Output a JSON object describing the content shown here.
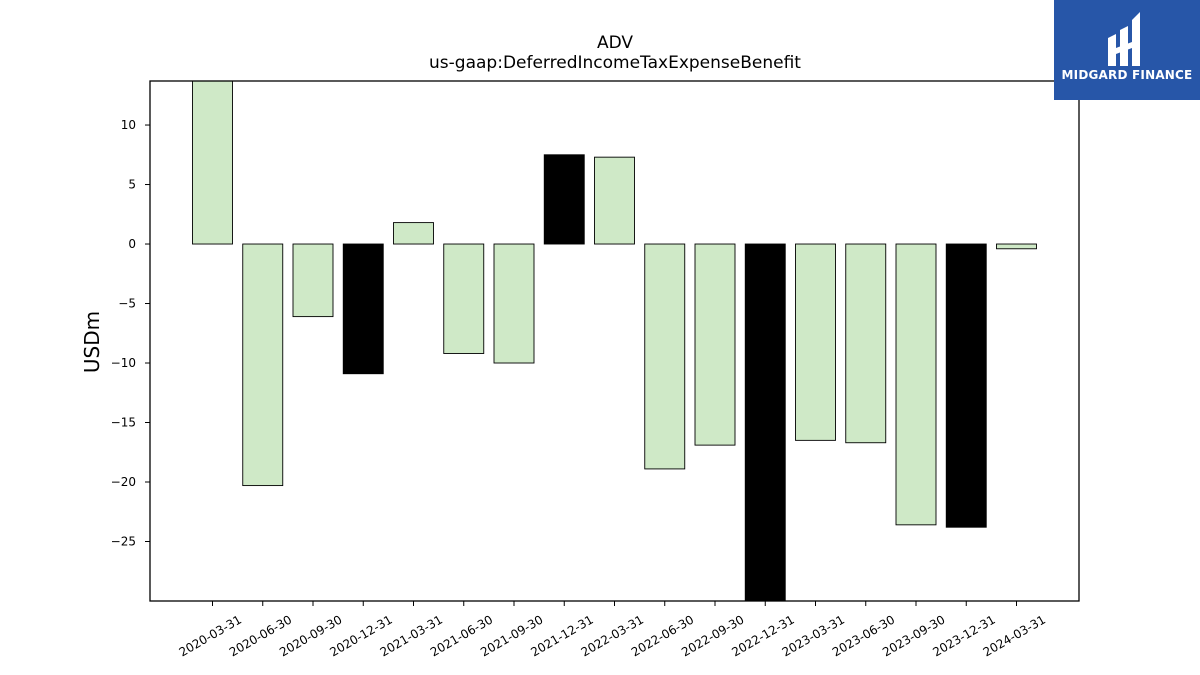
{
  "chart_data": {
    "type": "bar",
    "title": "ADV",
    "subtitle": "us-gaap:DeferredIncomeTaxExpenseBenefit",
    "ylabel": "USDm",
    "xlabel": "",
    "ylim": [
      -30,
      13.7
    ],
    "yticks": [
      10,
      5,
      0,
      -5,
      -10,
      -15,
      -20,
      -25
    ],
    "ytick_labels": [
      "10",
      "5",
      "0",
      "−5",
      "−10",
      "−15",
      "−20",
      "−25"
    ],
    "grid": false,
    "categories": [
      "2020-03-31",
      "2020-06-30",
      "2020-09-30",
      "2020-12-31",
      "2021-03-31",
      "2021-06-30",
      "2021-09-30",
      "2021-12-31",
      "2022-03-31",
      "2022-06-30",
      "2022-09-30",
      "2022-12-31",
      "2023-03-31",
      "2023-06-30",
      "2023-09-30",
      "2023-12-31",
      "2024-03-31"
    ],
    "values": [
      13.7,
      -20.3,
      -6.1,
      -10.9,
      1.8,
      -9.2,
      -10.0,
      7.5,
      7.3,
      -18.9,
      -16.9,
      -30.0,
      -16.5,
      -16.7,
      -23.6,
      -23.8,
      -0.4
    ],
    "bar_colors": [
      "#cfe9c7",
      "#cfe9c7",
      "#cfe9c7",
      "#000000",
      "#cfe9c7",
      "#cfe9c7",
      "#cfe9c7",
      "#000000",
      "#cfe9c7",
      "#cfe9c7",
      "#cfe9c7",
      "#000000",
      "#cfe9c7",
      "#cfe9c7",
      "#cfe9c7",
      "#000000",
      "#cfe9c7"
    ]
  },
  "logo": {
    "text": "MIDGARD FINANCE",
    "background": "#2756a8"
  }
}
